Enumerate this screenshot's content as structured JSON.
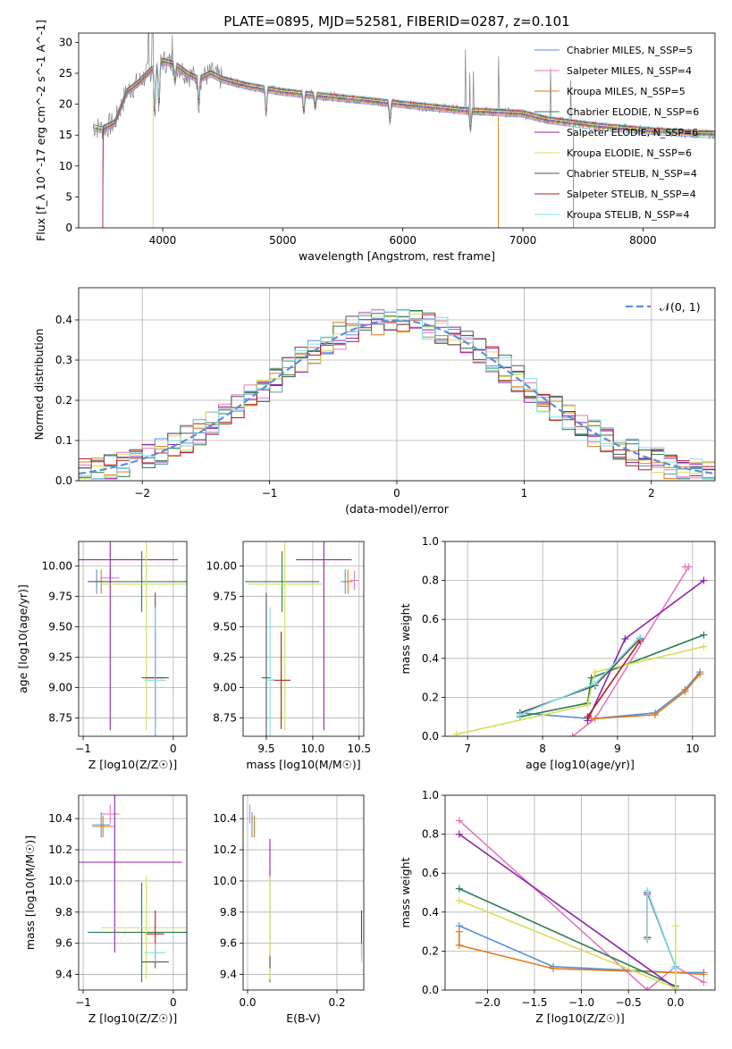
{
  "figure_title": "PLATE=0895, MJD=52581, FIBERID=0287, z=0.101",
  "series_styles": [
    {
      "name": "Chabrier MILES, N_SSP=5",
      "color": "#5b8fd9"
    },
    {
      "name": "Salpeter MILES, N_SSP=4",
      "color": "#e377c2"
    },
    {
      "name": "Kroupa MILES, N_SSP=5",
      "color": "#e07b1a"
    },
    {
      "name": "Chabrier ELODIE, N_SSP=6",
      "color": "#2e7d4f"
    },
    {
      "name": "Salpeter ELODIE, N_SSP=6",
      "color": "#8e24aa"
    },
    {
      "name": "Kroupa ELODIE, N_SSP=6",
      "color": "#d4e157"
    },
    {
      "name": "Chabrier STELIB, N_SSP=4",
      "color": "#555555"
    },
    {
      "name": "Salpeter STELIB, N_SSP=4",
      "color": "#b71c1c"
    },
    {
      "name": "Kroupa STELIB, N_SSP=4",
      "color": "#80deea"
    }
  ],
  "chart_data": [
    {
      "id": "spectrum",
      "type": "line",
      "title": "PLATE=0895, MJD=52581, FIBERID=0287, z=0.101",
      "xlabel": "wavelength [Angstrom, rest frame]",
      "ylabel": "Flux [f_λ 10^-17 erg cm^-2 s^-1 A^-1]",
      "xlim": [
        3300,
        8600
      ],
      "ylim": [
        0,
        31.5
      ],
      "xticks": [
        4000,
        5000,
        6000,
        7000,
        8000
      ],
      "yticks": [
        0,
        5,
        10,
        15,
        20,
        25,
        30
      ],
      "legend_position": "top-right",
      "grid": false,
      "legend": [
        "Chabrier MILES, N_SSP=5",
        "Salpeter MILES, N_SSP=4",
        "Kroupa MILES, N_SSP=5",
        "Chabrier ELODIE, N_SSP=6",
        "Salpeter ELODIE, N_SSP=6",
        "Kroupa ELODIE, N_SSP=6",
        "Chabrier STELIB, N_SSP=4",
        "Salpeter STELIB, N_SSP=4",
        "Kroupa STELIB, N_SSP=4"
      ],
      "data_continuum": {
        "x": [
          3400,
          3500,
          3600,
          3700,
          3800,
          3900,
          4000,
          4100,
          4200,
          4300,
          4400,
          4500,
          4700,
          5000,
          5500,
          6000,
          6500,
          7000,
          7200,
          7400,
          7600,
          8000,
          8500
        ],
        "y": [
          16.5,
          16.0,
          17.0,
          22.0,
          23.5,
          25.5,
          27.0,
          26.5,
          25.0,
          24.0,
          25.0,
          24.0,
          23.0,
          22.0,
          21.0,
          20.0,
          19.0,
          18.5,
          17.5,
          17.0,
          16.5,
          15.8,
          15.2
        ]
      }
    },
    {
      "id": "residuals",
      "type": "histogram",
      "xlabel": "(data-model)/error",
      "ylabel": "Normed distribution",
      "xlim": [
        -2.5,
        2.5
      ],
      "ylim": [
        0,
        0.48
      ],
      "xticks": [
        -2,
        -1,
        0,
        1,
        2
      ],
      "yticks": [
        0.0,
        0.1,
        0.2,
        0.3,
        0.4
      ],
      "grid": true,
      "legend": [
        "𝒩(0, 1)"
      ],
      "legend_position": "top-right",
      "bin_width": 0.1
    },
    {
      "id": "age_vs_Z",
      "type": "scatter",
      "xlabel": "Z [log10(Z/Z☉)]",
      "ylabel": "age [log10(age/yr)]",
      "xlim": [
        -1.05,
        0.15
      ],
      "ylim": [
        8.6,
        10.2
      ],
      "xticks": [
        -1,
        0
      ],
      "yticks": [
        8.75,
        9.0,
        9.25,
        9.5,
        9.75,
        10.0
      ],
      "grid": true,
      "points": [
        {
          "series": "Chabrier MILES",
          "x": -0.85,
          "y": 9.87,
          "xerr": 0.05,
          "yerr": 0.1
        },
        {
          "series": "Salpeter MILES",
          "x": -0.7,
          "y": 9.9,
          "xerr": 0.1,
          "yerr": 0.08
        },
        {
          "series": "Kroupa MILES",
          "x": -0.8,
          "y": 9.87,
          "xerr": 0.1,
          "yerr": 0.1
        },
        {
          "series": "Chabrier ELODIE",
          "x": -0.35,
          "y": 9.87,
          "xerr": 0.6,
          "yerr": 0.25
        },
        {
          "series": "Salpeter ELODIE",
          "x": -0.7,
          "y": 10.05,
          "xerr": 0.75,
          "yerr": 1.4
        },
        {
          "series": "Kroupa ELODIE",
          "x": -0.3,
          "y": 9.85,
          "xerr": 0.5,
          "yerr": 1.2
        },
        {
          "series": "Chabrier STELIB",
          "x": -0.2,
          "y": 9.08,
          "xerr": 0.15,
          "yerr": 0.7
        },
        {
          "series": "Salpeter STELIB",
          "x": -0.2,
          "y": 9.08,
          "xerr": 0.1,
          "yerr": 0.4
        },
        {
          "series": "Kroupa STELIB",
          "x": -0.2,
          "y": 9.06,
          "xerr": 0.12,
          "yerr": 0.6
        }
      ]
    },
    {
      "id": "age_vs_mass",
      "type": "scatter",
      "xlabel": "mass [log10(M/M☉)]",
      "ylabel": "",
      "xlim": [
        9.25,
        10.55
      ],
      "ylim": [
        8.6,
        10.2
      ],
      "xticks": [
        9.5,
        10.0,
        10.5
      ],
      "yticks": [
        8.75,
        9.0,
        9.25,
        9.5,
        9.75,
        10.0
      ],
      "grid": true,
      "points": [
        {
          "series": "Chabrier MILES",
          "x": 10.35,
          "y": 9.87,
          "xerr": 0.05,
          "yerr": 0.1
        },
        {
          "series": "Salpeter MILES",
          "x": 10.45,
          "y": 9.88,
          "xerr": 0.05,
          "yerr": 0.08
        },
        {
          "series": "Kroupa MILES",
          "x": 10.38,
          "y": 9.87,
          "xerr": 0.05,
          "yerr": 0.1
        },
        {
          "series": "Chabrier ELODIE",
          "x": 9.67,
          "y": 9.87,
          "xerr": 0.4,
          "yerr": 0.25
        },
        {
          "series": "Salpeter ELODIE",
          "x": 10.12,
          "y": 10.05,
          "xerr": 0.3,
          "yerr": 1.4
        },
        {
          "series": "Kroupa ELODIE",
          "x": 9.7,
          "y": 9.85,
          "xerr": 0.4,
          "yerr": 1.2
        },
        {
          "series": "Chabrier STELIB",
          "x": 9.5,
          "y": 9.08,
          "xerr": 0.05,
          "yerr": 0.7
        },
        {
          "series": "Salpeter STELIB",
          "x": 9.66,
          "y": 9.06,
          "xerr": 0.1,
          "yerr": 0.4
        },
        {
          "series": "Kroupa STELIB",
          "x": 9.54,
          "y": 9.06,
          "xerr": 0.05,
          "yerr": 0.6
        }
      ]
    },
    {
      "id": "weight_vs_age",
      "type": "line",
      "xlabel": "age [log10(age/yr)]",
      "ylabel": "mass weight",
      "xlim": [
        6.7,
        10.3
      ],
      "ylim": [
        0,
        1.0
      ],
      "xticks": [
        7,
        8,
        9,
        10
      ],
      "yticks": [
        0.0,
        0.2,
        0.4,
        0.6,
        0.8,
        1.0
      ],
      "grid": true,
      "series": [
        {
          "name": "Chabrier MILES",
          "x": [
            7.7,
            8.65,
            9.5,
            9.9,
            10.1
          ],
          "y": [
            0.12,
            0.09,
            0.12,
            0.24,
            0.33
          ]
        },
        {
          "name": "Salpeter MILES",
          "x": [
            8.4,
            8.7,
            9.95,
            9.9
          ],
          "y": [
            0.0,
            0.09,
            0.87,
            0.87
          ]
        },
        {
          "name": "Kroupa MILES",
          "x": [
            8.65,
            9.5,
            9.9,
            10.1
          ],
          "y": [
            0.09,
            0.11,
            0.23,
            0.32
          ]
        },
        {
          "name": "Chabrier ELODIE",
          "x": [
            7.7,
            8.6,
            8.65,
            10.15
          ],
          "y": [
            0.1,
            0.17,
            0.3,
            0.52
          ]
        },
        {
          "name": "Salpeter ELODIE",
          "x": [
            8.6,
            9.1,
            10.15
          ],
          "y": [
            0.08,
            0.5,
            0.8
          ]
        },
        {
          "name": "Kroupa ELODIE",
          "x": [
            6.85,
            8.6,
            8.7,
            10.15
          ],
          "y": [
            0.01,
            0.16,
            0.33,
            0.46
          ]
        },
        {
          "name": "Chabrier STELIB",
          "x": [
            7.7,
            8.7,
            9.3,
            9.3
          ],
          "y": [
            0.12,
            0.26,
            0.5,
            0.5
          ]
        },
        {
          "name": "Salpeter STELIB",
          "x": [
            8.6,
            9.3
          ],
          "y": [
            0.1,
            0.49
          ]
        },
        {
          "name": "Kroupa STELIB",
          "x": [
            7.7,
            8.7,
            9.3
          ],
          "y": [
            0.11,
            0.27,
            0.51
          ]
        }
      ]
    },
    {
      "id": "mass_vs_Z",
      "type": "scatter",
      "xlabel": "Z [log10(Z/Z☉)]",
      "ylabel": "mass [log10(M/M☉)]",
      "xlim": [
        -1.05,
        0.15
      ],
      "ylim": [
        9.3,
        10.55
      ],
      "xticks": [
        -1,
        0
      ],
      "yticks": [
        9.4,
        9.6,
        9.8,
        10.0,
        10.2,
        10.4
      ],
      "grid": true,
      "points": [
        {
          "series": "Chabrier MILES",
          "x": -0.8,
          "y": 10.36,
          "xerr": 0.1,
          "yerr": 0.08
        },
        {
          "series": "Salpeter MILES",
          "x": -0.7,
          "y": 10.43,
          "xerr": 0.1,
          "yerr": 0.06
        },
        {
          "series": "Kroupa MILES",
          "x": -0.78,
          "y": 10.35,
          "xerr": 0.12,
          "yerr": 0.07
        },
        {
          "series": "Chabrier ELODIE",
          "x": -0.35,
          "y": 9.67,
          "xerr": 0.6,
          "yerr": 0.32
        },
        {
          "series": "Salpeter ELODIE",
          "x": -0.65,
          "y": 10.12,
          "xerr": 0.75,
          "yerr": 0.58
        },
        {
          "series": "Kroupa ELODIE",
          "x": -0.3,
          "y": 9.7,
          "xerr": 0.5,
          "yerr": 0.33
        },
        {
          "series": "Chabrier STELIB",
          "x": -0.2,
          "y": 9.48,
          "xerr": 0.15,
          "yerr": 0.04
        },
        {
          "series": "Salpeter STELIB",
          "x": -0.2,
          "y": 9.66,
          "xerr": 0.1,
          "yerr": 0.15
        },
        {
          "series": "Kroupa STELIB",
          "x": -0.2,
          "y": 9.54,
          "xerr": 0.12,
          "yerr": 0.06
        }
      ]
    },
    {
      "id": "mass_vs_ebv",
      "type": "scatter",
      "xlabel": "E(B-V)",
      "ylabel": "",
      "xlim": [
        -0.01,
        0.26
      ],
      "ylim": [
        9.3,
        10.55
      ],
      "xticks": [
        0.0,
        0.2
      ],
      "yticks": [
        9.4,
        9.6,
        9.8,
        10.0,
        10.2,
        10.4
      ],
      "grid": true,
      "points": [
        {
          "series": "Chabrier MILES",
          "x": 0.01,
          "y": 10.36,
          "yerr": 0.08
        },
        {
          "series": "Salpeter MILES",
          "x": 0.005,
          "y": 10.43,
          "yerr": 0.06
        },
        {
          "series": "Kroupa MILES",
          "x": 0.015,
          "y": 10.35,
          "yerr": 0.07
        },
        {
          "series": "Chabrier ELODIE",
          "x": 0.05,
          "y": 9.67,
          "yerr": 0.32
        },
        {
          "series": "Salpeter ELODIE",
          "x": 0.05,
          "y": 10.12,
          "yerr": 0.15
        },
        {
          "series": "Kroupa ELODIE",
          "x": 0.05,
          "y": 9.7,
          "yerr": 0.33
        },
        {
          "series": "Chabrier STELIB",
          "x": 0.05,
          "y": 9.48,
          "yerr": 0.04
        },
        {
          "series": "Salpeter STELIB",
          "x": 0.255,
          "y": 9.66,
          "yerr": 0.15
        },
        {
          "series": "Kroupa STELIB",
          "x": 0.255,
          "y": 9.54,
          "yerr": 0.06
        }
      ]
    },
    {
      "id": "weight_vs_Z",
      "type": "line",
      "xlabel": "Z [log10(Z/Z☉)]",
      "ylabel": "mass weight",
      "xlim": [
        -2.45,
        0.42
      ],
      "ylim": [
        0,
        1.0
      ],
      "xticks": [
        -2.0,
        -1.5,
        -1.0,
        -0.5,
        0.0
      ],
      "yticks": [
        0.0,
        0.2,
        0.4,
        0.6,
        0.8,
        1.0
      ],
      "grid": true,
      "series": [
        {
          "name": "Chabrier MILES",
          "x": [
            -2.3,
            -1.3,
            0.0,
            0.3
          ],
          "y": [
            0.33,
            0.12,
            0.09,
            0.09
          ]
        },
        {
          "name": "Salpeter MILES",
          "x": [
            -2.3,
            -0.3,
            0.0,
            0.3
          ],
          "y": [
            0.87,
            0.0,
            0.12,
            0.04
          ]
        },
        {
          "name": "Kroupa MILES",
          "x": [
            -2.3,
            -2.3,
            -1.3,
            0.0,
            0.3
          ],
          "y": [
            0.3,
            0.23,
            0.11,
            0.09,
            0.08
          ]
        },
        {
          "name": "Chabrier ELODIE",
          "x": [
            -2.3,
            0.0
          ],
          "y": [
            0.52,
            0.02
          ]
        },
        {
          "name": "Salpeter ELODIE",
          "x": [
            -2.3,
            0.0
          ],
          "y": [
            0.8,
            0.01
          ]
        },
        {
          "name": "Kroupa ELODIE",
          "x": [
            -2.3,
            0.0,
            0.0
          ],
          "y": [
            0.46,
            0.01,
            0.33
          ]
        },
        {
          "name": "Chabrier STELIB",
          "x": [
            -0.3,
            -0.3,
            0.0,
            0.0
          ],
          "y": [
            0.26,
            0.5,
            0.12,
            0.12
          ]
        },
        {
          "name": "Salpeter STELIB",
          "x": [
            -0.3,
            -0.3
          ],
          "y": [
            0.27,
            0.49
          ]
        },
        {
          "name": "Kroupa STELIB",
          "x": [
            -0.3,
            -0.3,
            0.0,
            0.0
          ],
          "y": [
            0.26,
            0.51,
            0.12,
            0.11
          ]
        }
      ]
    }
  ]
}
